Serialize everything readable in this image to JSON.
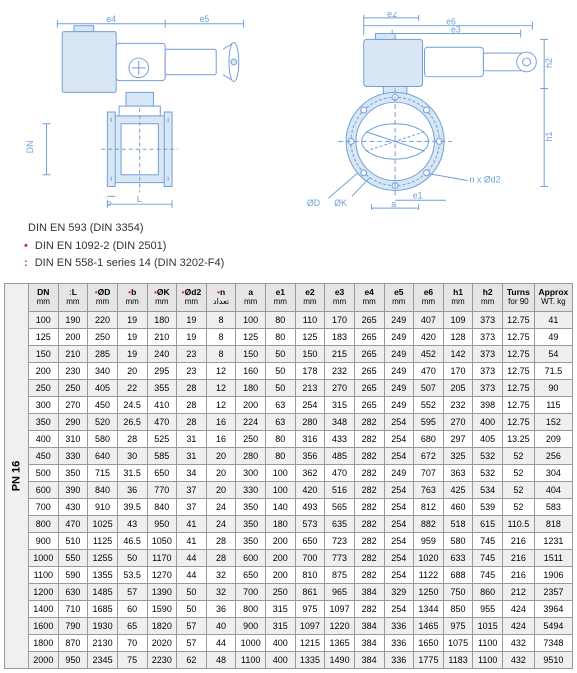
{
  "diagram_labels": {
    "left": {
      "e4": "e4",
      "e5": "e5",
      "DN": "DN",
      "b": "b",
      "L": "L"
    },
    "right": {
      "e2": "e2",
      "e6": "e6",
      "e3": "e3",
      "h2": "h2",
      "h1": "h1",
      "phiD": "ØD",
      "phik": "ØK",
      "nxd2": "n x Ød2",
      "e1": "e1",
      "a": "a"
    }
  },
  "notes": [
    {
      "sym": "",
      "text": "DIN EN 593 (DIN 3354)"
    },
    {
      "sym": "•",
      "sym_color": "#d33",
      "text": "DIN EN 1092-2 (DIN 2501)"
    },
    {
      "sym": ":",
      "sym_color": "#d33",
      "text": "DIN EN 558-1 series 14 (DIN 3202-F4)"
    }
  ],
  "pn_label": "PN 16",
  "table": {
    "columns": [
      {
        "label": "DN",
        "unit": "mm",
        "sym": ""
      },
      {
        "label": "L",
        "unit": "mm",
        "sym": ":"
      },
      {
        "label": "ØD",
        "unit": "mm",
        "sym": "•"
      },
      {
        "label": "b",
        "unit": "mm",
        "sym": "•"
      },
      {
        "label": "ØK",
        "unit": "mm",
        "sym": "•"
      },
      {
        "label": "Ød2",
        "unit": "mm",
        "sym": "•"
      },
      {
        "label": "n",
        "unit": "تعداد",
        "sym": "•"
      },
      {
        "label": "a",
        "unit": "mm",
        "sym": ""
      },
      {
        "label": "e1",
        "unit": "mm",
        "sym": ""
      },
      {
        "label": "e2",
        "unit": "mm",
        "sym": ""
      },
      {
        "label": "e3",
        "unit": "mm",
        "sym": ""
      },
      {
        "label": "e4",
        "unit": "mm",
        "sym": ""
      },
      {
        "label": "e5",
        "unit": "mm",
        "sym": ""
      },
      {
        "label": "e6",
        "unit": "mm",
        "sym": ""
      },
      {
        "label": "h1",
        "unit": "mm",
        "sym": ""
      },
      {
        "label": "h2",
        "unit": "mm",
        "sym": ""
      },
      {
        "label": "Turns",
        "unit": "for 90",
        "sym": ""
      },
      {
        "label": "Approx",
        "unit": "WT. kg",
        "sym": ""
      }
    ],
    "rows": [
      [
        "100",
        "190",
        "220",
        "19",
        "180",
        "19",
        "8",
        "100",
        "80",
        "110",
        "170",
        "265",
        "249",
        "407",
        "109",
        "373",
        "12.75",
        "41"
      ],
      [
        "125",
        "200",
        "250",
        "19",
        "210",
        "19",
        "8",
        "125",
        "80",
        "125",
        "183",
        "265",
        "249",
        "420",
        "128",
        "373",
        "12.75",
        "49"
      ],
      [
        "150",
        "210",
        "285",
        "19",
        "240",
        "23",
        "8",
        "150",
        "50",
        "150",
        "215",
        "265",
        "249",
        "452",
        "142",
        "373",
        "12.75",
        "54"
      ],
      [
        "200",
        "230",
        "340",
        "20",
        "295",
        "23",
        "12",
        "160",
        "50",
        "178",
        "232",
        "265",
        "249",
        "470",
        "170",
        "373",
        "12.75",
        "71.5"
      ],
      [
        "250",
        "250",
        "405",
        "22",
        "355",
        "28",
        "12",
        "180",
        "50",
        "213",
        "270",
        "265",
        "249",
        "507",
        "205",
        "373",
        "12.75",
        "90"
      ],
      [
        "300",
        "270",
        "450",
        "24.5",
        "410",
        "28",
        "12",
        "200",
        "63",
        "254",
        "315",
        "265",
        "249",
        "552",
        "232",
        "398",
        "12.75",
        "115"
      ],
      [
        "350",
        "290",
        "520",
        "26.5",
        "470",
        "28",
        "16",
        "224",
        "63",
        "280",
        "348",
        "282",
        "254",
        "595",
        "270",
        "400",
        "12.75",
        "152"
      ],
      [
        "400",
        "310",
        "580",
        "28",
        "525",
        "31",
        "16",
        "250",
        "80",
        "316",
        "433",
        "282",
        "254",
        "680",
        "297",
        "405",
        "13.25",
        "209"
      ],
      [
        "450",
        "330",
        "640",
        "30",
        "585",
        "31",
        "20",
        "280",
        "80",
        "356",
        "485",
        "282",
        "254",
        "672",
        "325",
        "532",
        "52",
        "256"
      ],
      [
        "500",
        "350",
        "715",
        "31.5",
        "650",
        "34",
        "20",
        "300",
        "100",
        "362",
        "470",
        "282",
        "249",
        "707",
        "363",
        "532",
        "52",
        "304"
      ],
      [
        "600",
        "390",
        "840",
        "36",
        "770",
        "37",
        "20",
        "330",
        "100",
        "420",
        "516",
        "282",
        "254",
        "763",
        "425",
        "534",
        "52",
        "404"
      ],
      [
        "700",
        "430",
        "910",
        "39.5",
        "840",
        "37",
        "24",
        "350",
        "140",
        "493",
        "565",
        "282",
        "254",
        "812",
        "460",
        "539",
        "52",
        "583"
      ],
      [
        "800",
        "470",
        "1025",
        "43",
        "950",
        "41",
        "24",
        "350",
        "180",
        "573",
        "635",
        "282",
        "254",
        "882",
        "518",
        "615",
        "110.5",
        "818"
      ],
      [
        "900",
        "510",
        "1125",
        "46.5",
        "1050",
        "41",
        "28",
        "350",
        "200",
        "650",
        "723",
        "282",
        "254",
        "959",
        "580",
        "745",
        "216",
        "1231"
      ],
      [
        "1000",
        "550",
        "1255",
        "50",
        "1170",
        "44",
        "28",
        "600",
        "200",
        "700",
        "773",
        "282",
        "254",
        "1020",
        "633",
        "745",
        "216",
        "1511"
      ],
      [
        "1100",
        "590",
        "1355",
        "53.5",
        "1270",
        "44",
        "32",
        "650",
        "200",
        "810",
        "875",
        "282",
        "254",
        "1122",
        "688",
        "745",
        "216",
        "1906"
      ],
      [
        "1200",
        "630",
        "1485",
        "57",
        "1390",
        "50",
        "32",
        "700",
        "250",
        "861",
        "965",
        "384",
        "329",
        "1250",
        "750",
        "860",
        "212",
        "2357"
      ],
      [
        "1400",
        "710",
        "1685",
        "60",
        "1590",
        "50",
        "36",
        "800",
        "315",
        "975",
        "1097",
        "282",
        "254",
        "1344",
        "850",
        "955",
        "424",
        "3964"
      ],
      [
        "1600",
        "790",
        "1930",
        "65",
        "1820",
        "57",
        "40",
        "900",
        "315",
        "1097",
        "1220",
        "384",
        "336",
        "1465",
        "975",
        "1015",
        "424",
        "5494"
      ],
      [
        "1800",
        "870",
        "2130",
        "70",
        "2020",
        "57",
        "44",
        "1000",
        "400",
        "1215",
        "1365",
        "384",
        "336",
        "1650",
        "1075",
        "1100",
        "432",
        "7348"
      ],
      [
        "2000",
        "950",
        "2345",
        "75",
        "2230",
        "62",
        "48",
        "1100",
        "400",
        "1335",
        "1490",
        "384",
        "336",
        "1775",
        "1183",
        "1100",
        "432",
        "9510"
      ]
    ]
  },
  "colors": {
    "line": "#6f9fd8",
    "fill": "#d9e6f4",
    "header_bg": "#e5e5e5",
    "row_alt": "#efefef",
    "sym": "#d33"
  }
}
